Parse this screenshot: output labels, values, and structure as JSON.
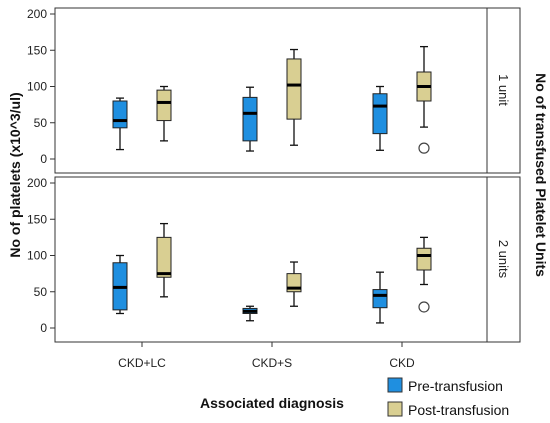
{
  "chart_data": {
    "type": "boxplot",
    "ylabel": "No of platelets (x10^3/ul)",
    "xlabel": "Associated diagnosis",
    "facet_label": "No of transfused Platelet Units",
    "categories": [
      "CKD+LC",
      "CKD+S",
      "CKD"
    ],
    "ylim": [
      0,
      200
    ],
    "yticks": [
      0,
      50,
      100,
      150,
      200
    ],
    "legend_position": "bottom-right",
    "series": [
      {
        "name": "Pre-transfusion",
        "color": "#1f8fe0"
      },
      {
        "name": "Post-transfusion",
        "color": "#d9cf92"
      }
    ],
    "panels": [
      {
        "label": "1 unit",
        "boxes": [
          [
            {
              "min": 13,
              "q1": 43,
              "median": 53,
              "q3": 80,
              "max": 84,
              "outliers": []
            },
            {
              "min": 25,
              "q1": 53,
              "median": 78,
              "q3": 95,
              "max": 100,
              "outliers": []
            }
          ],
          [
            {
              "min": 11,
              "q1": 25,
              "median": 63,
              "q3": 85,
              "max": 99,
              "outliers": []
            },
            {
              "min": 19,
              "q1": 55,
              "median": 102,
              "q3": 138,
              "max": 151,
              "outliers": []
            }
          ],
          [
            {
              "min": 12,
              "q1": 35,
              "median": 73,
              "q3": 90,
              "max": 100,
              "outliers": []
            },
            {
              "min": 44,
              "q1": 80,
              "median": 100,
              "q3": 120,
              "max": 155,
              "outliers": [
                15
              ]
            }
          ]
        ]
      },
      {
        "label": "2 units",
        "boxes": [
          [
            {
              "min": 20,
              "q1": 25,
              "median": 56,
              "q3": 90,
              "max": 100,
              "outliers": []
            },
            {
              "min": 43,
              "q1": 70,
              "median": 75,
              "q3": 125,
              "max": 144,
              "outliers": []
            }
          ],
          [
            {
              "min": 10,
              "q1": 20,
              "median": 23,
              "q3": 27,
              "max": 30,
              "outliers": []
            },
            {
              "min": 30,
              "q1": 50,
              "median": 55,
              "q3": 75,
              "max": 91,
              "outliers": []
            }
          ],
          [
            {
              "min": 7,
              "q1": 28,
              "median": 45,
              "q3": 53,
              "max": 77,
              "outliers": []
            },
            {
              "min": 60,
              "q1": 80,
              "median": 100,
              "q3": 110,
              "max": 125,
              "outliers": [
                29
              ]
            }
          ]
        ]
      }
    ]
  }
}
